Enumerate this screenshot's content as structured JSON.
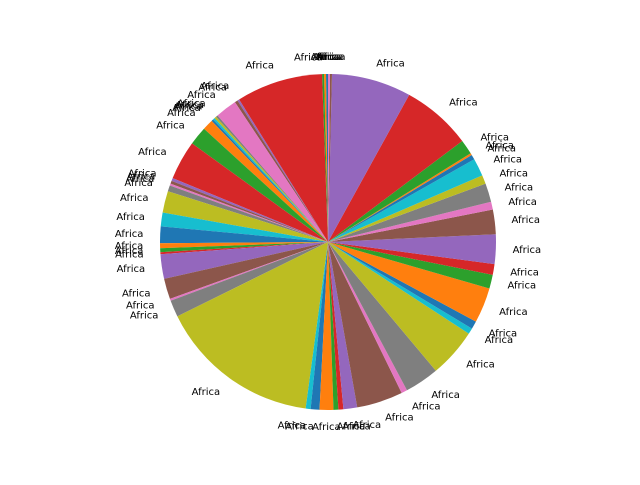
{
  "chart_data": {
    "type": "pie",
    "title": "",
    "start_angle_deg": 90,
    "direction": "counterclockwise",
    "label_text": "Africa",
    "palette": [
      "#1f77b4",
      "#ff7f0e",
      "#2ca02c",
      "#d62728",
      "#9467bd",
      "#8c564b",
      "#e377c2",
      "#7f7f7f",
      "#bcbd22",
      "#17becf"
    ],
    "slices": [
      {
        "label": "Africa",
        "value": 0.2
      },
      {
        "label": "Africa",
        "value": 0.2
      },
      {
        "label": "Africa",
        "value": 0.2
      },
      {
        "label": "Africa",
        "value": 8.8
      },
      {
        "label": "Africa",
        "value": 0.2
      },
      {
        "label": "Africa",
        "value": 0.3
      },
      {
        "label": "Africa",
        "value": 2.2
      },
      {
        "label": "Africa",
        "value": 0.2
      },
      {
        "label": "Africa",
        "value": 0.2
      },
      {
        "label": "Africa",
        "value": 0.2
      },
      {
        "label": "Africa",
        "value": 0.2
      },
      {
        "label": "Africa",
        "value": 1.1
      },
      {
        "label": "Africa",
        "value": 1.9
      },
      {
        "label": "Africa",
        "value": 4.0
      },
      {
        "label": "Africa",
        "value": 0.3
      },
      {
        "label": "Africa",
        "value": 0.3
      },
      {
        "label": "Africa",
        "value": 0.2
      },
      {
        "label": "Africa",
        "value": 0.6
      },
      {
        "label": "Africa",
        "value": 2.2
      },
      {
        "label": "Africa",
        "value": 1.4
      },
      {
        "label": "Africa",
        "value": 1.7
      },
      {
        "label": "Africa",
        "value": 0.5
      },
      {
        "label": "Africa",
        "value": 0.4
      },
      {
        "label": "Africa",
        "value": 0.2
      },
      {
        "label": "Africa",
        "value": 2.5
      },
      {
        "label": "Africa",
        "value": 2.1
      },
      {
        "label": "Africa",
        "value": 0.2
      },
      {
        "label": "Africa",
        "value": 1.7
      },
      {
        "label": "Africa",
        "value": 16.5
      },
      {
        "label": "Africa",
        "value": 0.5
      },
      {
        "label": "Africa",
        "value": 0.9
      },
      {
        "label": "Africa",
        "value": 1.4
      },
      {
        "label": "Africa",
        "value": 0.5
      },
      {
        "label": "Africa",
        "value": 0.5
      },
      {
        "label": "Africa",
        "value": 1.4
      },
      {
        "label": "Africa",
        "value": 4.7
      },
      {
        "label": "Africa",
        "value": 0.6
      },
      {
        "label": "Africa",
        "value": 3.5
      },
      {
        "label": "Africa",
        "value": 5.0
      },
      {
        "label": "Africa",
        "value": 0.6
      },
      {
        "label": "Africa",
        "value": 0.8
      },
      {
        "label": "Africa",
        "value": 3.6
      },
      {
        "label": "Africa",
        "value": 1.4
      },
      {
        "label": "Africa",
        "value": 1.1
      },
      {
        "label": "Africa",
        "value": 3.0
      },
      {
        "label": "Africa",
        "value": 2.5
      },
      {
        "label": "Africa",
        "value": 0.8
      },
      {
        "label": "Africa",
        "value": 1.9
      },
      {
        "label": "Africa",
        "value": 0.9
      },
      {
        "label": "Africa",
        "value": 1.8
      },
      {
        "label": "Africa",
        "value": 0.5
      },
      {
        "label": "Africa",
        "value": 0.2
      },
      {
        "label": "Africa",
        "value": 1.5
      },
      {
        "label": "Africa",
        "value": 7.1
      },
      {
        "label": "Africa",
        "value": 8.1
      },
      {
        "label": "Africa",
        "value": 0.2
      },
      {
        "label": "Africa",
        "value": 0.2
      }
    ]
  }
}
